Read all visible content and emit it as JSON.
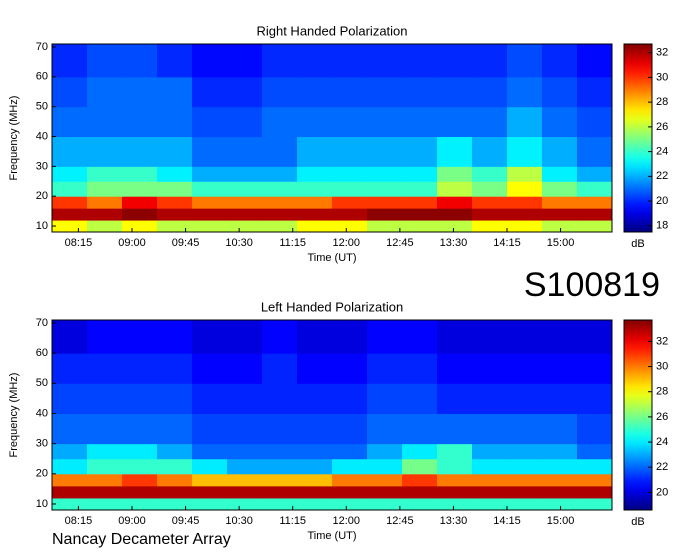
{
  "header": {
    "id": "S100819"
  },
  "footer": {
    "text": "Nancay Decameter Array"
  },
  "chart_data": [
    {
      "type": "heatmap",
      "title": "Right Handed Polarization",
      "x_label": "Time (UT)",
      "y_label": "Frequency (MHz)",
      "colormap": "jet",
      "xlim": [
        7.88,
        15.72
      ],
      "ylim": [
        8,
        71
      ],
      "xticks": [
        {
          "value": 8.25,
          "label": "08:15"
        },
        {
          "value": 9,
          "label": "09:00"
        },
        {
          "value": 9.75,
          "label": "09:45"
        },
        {
          "value": 10.5,
          "label": "10:30"
        },
        {
          "value": 11.25,
          "label": "11:15"
        },
        {
          "value": 12,
          "label": "12:00"
        },
        {
          "value": 12.75,
          "label": "12:45"
        },
        {
          "value": 13.5,
          "label": "13:30"
        },
        {
          "value": 14.25,
          "label": "14:15"
        },
        {
          "value": 15,
          "label": "15:00"
        }
      ],
      "yticks": [
        10,
        20,
        30,
        40,
        50,
        60,
        70
      ],
      "x_bins": [
        7.88,
        8.37,
        8.86,
        9.35,
        9.84,
        10.33,
        10.82,
        11.31,
        11.8,
        12.29,
        12.78,
        13.27,
        13.76,
        14.25,
        14.74,
        15.23,
        15.72
      ],
      "y_bins": [
        8,
        12,
        16,
        20,
        25,
        30,
        40,
        50,
        60,
        71
      ],
      "values": [
        [
          27,
          26,
          27,
          26,
          26,
          26,
          26,
          27,
          27,
          26,
          26,
          26,
          27,
          27,
          26,
          26
        ],
        [
          32,
          32,
          32.5,
          32,
          32,
          32,
          32,
          32,
          32,
          32.5,
          32.5,
          32.5,
          32,
          32,
          32,
          32
        ],
        [
          30,
          29,
          31,
          30,
          29,
          29,
          29,
          29,
          30,
          30,
          30,
          31,
          30,
          30,
          29,
          29
        ],
        [
          24,
          25,
          25,
          25,
          24,
          24,
          24,
          24,
          24,
          24,
          24,
          26,
          25,
          27,
          25,
          24
        ],
        [
          23,
          24,
          24,
          23,
          22,
          22,
          22,
          23,
          23,
          23,
          23,
          25,
          24,
          26,
          23,
          22
        ],
        [
          22,
          22,
          22,
          22,
          21,
          21,
          21,
          22,
          22,
          22,
          22,
          23,
          22,
          23,
          22,
          21
        ],
        [
          21,
          21,
          21,
          21,
          20.5,
          20.5,
          21,
          21,
          21,
          21,
          21,
          21,
          21,
          22,
          21,
          20.5
        ],
        [
          20.5,
          21,
          21,
          21,
          20,
          20,
          20.5,
          20.5,
          20.5,
          20.5,
          20.5,
          20.5,
          20.5,
          21,
          20.5,
          20
        ],
        [
          20,
          20.5,
          20.5,
          20,
          19.5,
          19.5,
          20,
          20,
          20,
          20,
          20,
          20,
          20,
          20.5,
          20,
          19.5
        ]
      ],
      "colorbar": {
        "label": "dB",
        "lim": [
          17.5,
          32.7
        ],
        "ticks": [
          18,
          20,
          22,
          24,
          26,
          28,
          30,
          32
        ]
      }
    },
    {
      "type": "heatmap",
      "title": "Left Handed Polarization",
      "x_label": "Time (UT)",
      "y_label": "Frequency (MHz)",
      "colormap": "jet",
      "xlim": [
        7.88,
        15.72
      ],
      "ylim": [
        8,
        71
      ],
      "xticks": [
        {
          "value": 8.25,
          "label": "08:15"
        },
        {
          "value": 9,
          "label": "09:00"
        },
        {
          "value": 9.75,
          "label": "09:45"
        },
        {
          "value": 10.5,
          "label": "10:30"
        },
        {
          "value": 11.25,
          "label": "11:15"
        },
        {
          "value": 12,
          "label": "12:00"
        },
        {
          "value": 12.75,
          "label": "12:45"
        },
        {
          "value": 13.5,
          "label": "13:30"
        },
        {
          "value": 14.25,
          "label": "14:15"
        },
        {
          "value": 15,
          "label": "15:00"
        }
      ],
      "yticks": [
        10,
        20,
        30,
        40,
        50,
        60,
        70
      ],
      "x_bins": [
        7.88,
        8.37,
        8.86,
        9.35,
        9.84,
        10.33,
        10.82,
        11.31,
        11.8,
        12.29,
        12.78,
        13.27,
        13.76,
        14.25,
        14.74,
        15.23,
        15.72
      ],
      "y_bins": [
        8,
        12,
        16,
        20,
        25,
        30,
        40,
        50,
        60,
        71
      ],
      "values": [
        [
          25,
          25,
          25,
          25,
          25,
          25,
          25,
          25,
          25,
          25,
          25,
          25,
          25,
          25,
          25,
          25
        ],
        [
          33,
          33,
          33,
          33,
          33,
          33,
          33,
          33,
          33,
          33,
          33,
          33,
          33,
          33,
          33,
          33
        ],
        [
          30,
          30,
          31,
          30,
          29,
          29,
          29,
          29,
          30,
          30,
          31,
          30,
          30,
          30,
          30,
          30
        ],
        [
          24,
          25,
          25,
          25,
          24,
          23,
          23,
          23,
          24,
          24,
          26,
          25,
          24,
          24,
          24,
          24
        ],
        [
          23,
          24,
          24,
          23,
          22,
          22,
          22,
          22,
          22,
          23,
          24,
          25,
          23,
          23,
          23,
          22
        ],
        [
          22,
          22,
          22,
          22,
          21.5,
          21.5,
          21.5,
          21.5,
          21.5,
          22,
          22,
          22,
          22,
          22,
          22,
          21.5
        ],
        [
          21.5,
          21.5,
          21.5,
          21.5,
          21,
          21,
          21,
          21,
          21,
          21.5,
          21.5,
          21,
          21,
          21,
          21,
          21
        ],
        [
          21,
          21,
          21,
          21,
          20.5,
          20.5,
          21,
          20.5,
          20.5,
          21,
          21,
          20.5,
          20.5,
          20.5,
          20.5,
          20.5
        ],
        [
          20,
          20.5,
          20.5,
          20.5,
          20,
          20,
          20.5,
          20,
          20,
          20.5,
          20.5,
          20,
          20,
          20,
          20,
          20
        ]
      ],
      "colorbar": {
        "label": "dB",
        "lim": [
          18.6,
          33.7
        ],
        "ticks": [
          20,
          22,
          24,
          26,
          28,
          30,
          32
        ]
      }
    }
  ]
}
